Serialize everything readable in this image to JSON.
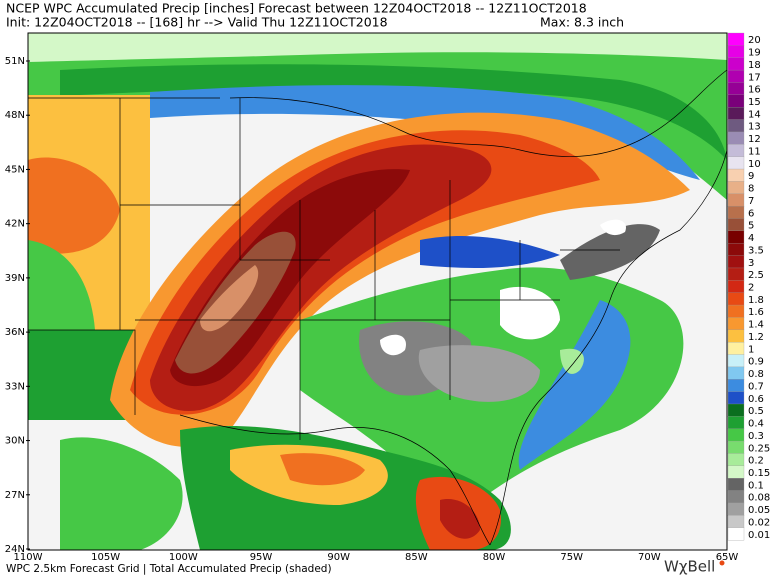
{
  "header": {
    "title": "NCEP WPC Accumulated Precip [inches] Forecast between 12Z04OCT2018 -- 12Z11OCT2018",
    "init_line": "Init: 12Z04OCT2018 -- [168] hr --> Valid Thu 12Z11OCT2018",
    "max": "Max: 8.3 inch"
  },
  "map": {
    "lat_labels": [
      "51N",
      "48N",
      "45N",
      "42N",
      "39N",
      "36N",
      "33N",
      "30N",
      "27N",
      "24N"
    ],
    "lon_labels": [
      "110W",
      "105W",
      "100W",
      "95W",
      "90W",
      "85W",
      "80W",
      "75W",
      "70W",
      "65W"
    ]
  },
  "colorbar": [
    {
      "label": "20",
      "color": "#ff00ff"
    },
    {
      "label": "19",
      "color": "#e600e6"
    },
    {
      "label": "18",
      "color": "#cc00cc"
    },
    {
      "label": "17",
      "color": "#b000b0"
    },
    {
      "label": "16",
      "color": "#960096"
    },
    {
      "label": "15",
      "color": "#7a007a"
    },
    {
      "label": "14",
      "color": "#5a1a5a"
    },
    {
      "label": "13",
      "color": "#6e5a80"
    },
    {
      "label": "12",
      "color": "#9a8cb4"
    },
    {
      "label": "11",
      "color": "#c4bcd8"
    },
    {
      "label": "10",
      "color": "#e8e4f0"
    },
    {
      "label": "9",
      "color": "#f8d0b0"
    },
    {
      "label": "8",
      "color": "#e8b088"
    },
    {
      "label": "7",
      "color": "#d89068"
    },
    {
      "label": "6",
      "color": "#b8704c"
    },
    {
      "label": "5",
      "color": "#985038"
    },
    {
      "label": "4",
      "color": "#780000"
    },
    {
      "label": "3.5",
      "color": "#8c0a0a"
    },
    {
      "label": "3",
      "color": "#a01010"
    },
    {
      "label": "2.5",
      "color": "#b41e14"
    },
    {
      "label": "2",
      "color": "#d22814"
    },
    {
      "label": "1.8",
      "color": "#e84a14"
    },
    {
      "label": "1.6",
      "color": "#f07020"
    },
    {
      "label": "1.4",
      "color": "#f89830"
    },
    {
      "label": "1.2",
      "color": "#fcc040"
    },
    {
      "label": "1",
      "color": "#fff0a0"
    },
    {
      "label": "0.9",
      "color": "#c8f0f8"
    },
    {
      "label": "0.8",
      "color": "#80c8f0"
    },
    {
      "label": "0.7",
      "color": "#3c8ce0"
    },
    {
      "label": "0.6",
      "color": "#1e50c8"
    },
    {
      "label": "0.5",
      "color": "#0a6e1e"
    },
    {
      "label": "0.4",
      "color": "#1ea032"
    },
    {
      "label": "0.3",
      "color": "#46c846"
    },
    {
      "label": "0.25",
      "color": "#78dc6e"
    },
    {
      "label": "0.2",
      "color": "#a8ec9a"
    },
    {
      "label": "0.15",
      "color": "#d4f8c8"
    },
    {
      "label": "0.1",
      "color": "#646464"
    },
    {
      "label": "0.08",
      "color": "#828282"
    },
    {
      "label": "0.05",
      "color": "#a0a0a0"
    },
    {
      "label": "0.02",
      "color": "#c8c8c8"
    },
    {
      "label": "0.01",
      "color": "#ffffff"
    }
  ],
  "footer": {
    "caption": "WPC 2.5km Forecast Grid | Total Accumulated Precip (shaded)",
    "logo": "WχBell"
  }
}
